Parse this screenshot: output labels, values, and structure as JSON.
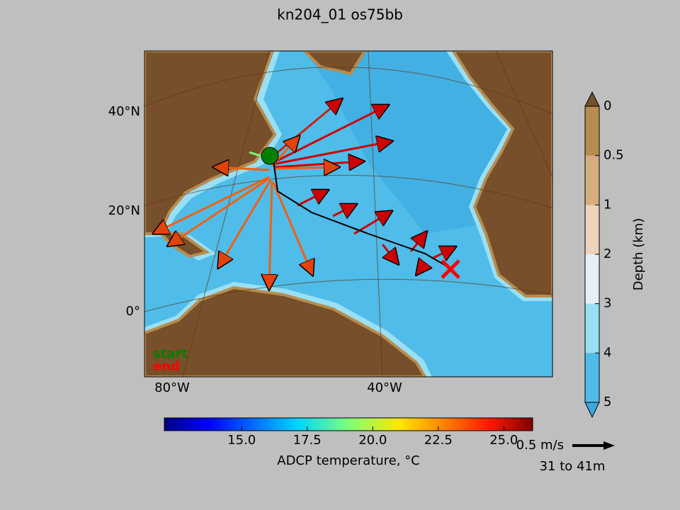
{
  "title": "kn204_01 os75bb",
  "map": {
    "lat_labels": [
      "40°N",
      "20°N",
      "0°"
    ],
    "lon_labels": [
      "80°W",
      "40°W"
    ],
    "legend": {
      "start": "start",
      "end": "end"
    }
  },
  "temperature_colorbar": {
    "label": "ADCP temperature, °C",
    "range": [
      12.05,
      26.1
    ],
    "ticks": [
      {
        "value": 15,
        "label": "15.0"
      },
      {
        "value": 17.5,
        "label": "17.5"
      },
      {
        "value": 20,
        "label": "20.0"
      },
      {
        "value": 22.5,
        "label": "22.5"
      },
      {
        "value": 25,
        "label": "25.0"
      }
    ]
  },
  "depth_colorbar": {
    "label": "Depth (km)",
    "ticks": [
      0,
      0.5,
      1,
      2,
      3,
      4,
      5
    ]
  },
  "scale": {
    "speed": "0.5 m/s",
    "depth_range": "31 to 41m"
  }
}
